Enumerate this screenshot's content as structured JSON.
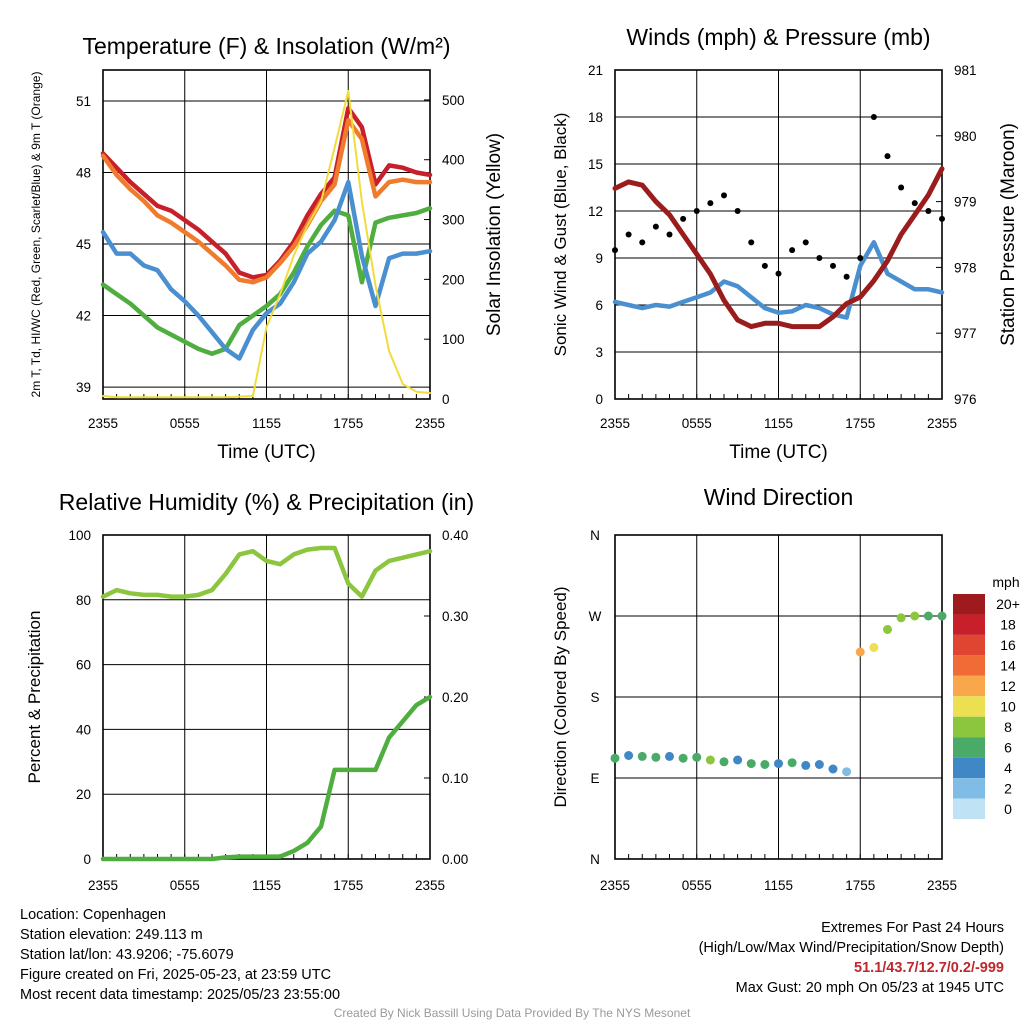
{
  "chart_data": [
    {
      "type": "line",
      "title": "Temperature (F) & Insolation (W/m²)",
      "xlabel": "Time (UTC)",
      "ylabel": "2m T, Td, HI/WC (Red, Green, Scarlet/Blue) & 9m T (Orange)",
      "ylabel2": "Solar Insolation (Yellow)",
      "xticks": [
        "2355",
        "0555",
        "1155",
        "1755",
        "2355"
      ],
      "yticks": [
        39,
        42,
        45,
        48,
        51
      ],
      "yticks2": [
        0,
        100,
        200,
        300,
        400,
        500
      ],
      "ylim": [
        38.5,
        52.3
      ],
      "ylim2": [
        0,
        550
      ],
      "xlim": [
        0,
        24
      ],
      "x": [
        0,
        1,
        2,
        3,
        4,
        5,
        6,
        7,
        8,
        9,
        10,
        11,
        12,
        13,
        14,
        15,
        16,
        17,
        18,
        19,
        20,
        21,
        22,
        23,
        24
      ],
      "series": [
        {
          "name": "2m T",
          "color": "#c8202a",
          "values": [
            48.8,
            48.2,
            47.6,
            47.1,
            46.6,
            46.4,
            46.0,
            45.6,
            45.1,
            44.6,
            43.8,
            43.6,
            43.7,
            44.3,
            45.1,
            46.2,
            47.1,
            47.8,
            50.7,
            49.9,
            47.5,
            48.3,
            48.2,
            48.0,
            47.9
          ]
        },
        {
          "name": "9m T",
          "color": "#f07b2c",
          "values": [
            48.7,
            47.9,
            47.3,
            46.8,
            46.2,
            45.9,
            45.5,
            45.1,
            44.6,
            44.1,
            43.5,
            43.4,
            43.6,
            44.2,
            44.9,
            45.8,
            46.8,
            47.5,
            50.2,
            49.4,
            47.0,
            47.6,
            47.7,
            47.6,
            47.6
          ]
        },
        {
          "name": "Td",
          "color": "#4fae3f",
          "values": [
            43.3,
            42.9,
            42.5,
            42.0,
            41.5,
            41.2,
            40.9,
            40.6,
            40.4,
            40.6,
            41.6,
            42.0,
            42.4,
            42.9,
            43.8,
            44.9,
            45.8,
            46.4,
            46.2,
            43.4,
            45.9,
            46.1,
            46.2,
            46.3,
            46.5
          ]
        },
        {
          "name": "HI/WC",
          "color": "#4a8fd0",
          "values": [
            45.5,
            44.6,
            44.6,
            44.1,
            43.9,
            43.1,
            42.6,
            42.0,
            41.3,
            40.6,
            40.2,
            41.4,
            42.1,
            42.5,
            43.4,
            44.6,
            45.1,
            46.0,
            47.6,
            44.5,
            42.4,
            44.4,
            44.6,
            44.6,
            44.7
          ]
        },
        {
          "name": "Solar Insolation",
          "axis": "right",
          "color": "#f2dc3c",
          "values": [
            5,
            3,
            3,
            3,
            3,
            3,
            3,
            3,
            3,
            3,
            4,
            5,
            120,
            175,
            240,
            290,
            330,
            420,
            515,
            330,
            190,
            80,
            25,
            12,
            10
          ]
        }
      ]
    },
    {
      "type": "line",
      "title": "Winds (mph) & Pressure (mb)",
      "xlabel": "Time (UTC)",
      "ylabel": "Sonic Wind & Gust (Blue, Black)",
      "ylabel2": "Station Pressure (Maroon)",
      "xticks": [
        "2355",
        "0555",
        "1155",
        "1755",
        "2355"
      ],
      "yticks": [
        0,
        3,
        6,
        9,
        12,
        15,
        18,
        21
      ],
      "yticks2": [
        976,
        977,
        978,
        979,
        980,
        981
      ],
      "ylim": [
        0,
        21
      ],
      "ylim2": [
        976,
        981
      ],
      "xlim": [
        0,
        24
      ],
      "x": [
        0,
        1,
        2,
        3,
        4,
        5,
        6,
        7,
        8,
        9,
        10,
        11,
        12,
        13,
        14,
        15,
        16,
        17,
        18,
        19,
        20,
        21,
        22,
        23,
        24
      ],
      "series": [
        {
          "name": "Sonic Wind",
          "color": "#4a8fd0",
          "values": [
            6.2,
            6.0,
            5.8,
            6.0,
            5.9,
            6.2,
            6.5,
            6.8,
            7.5,
            7.2,
            6.5,
            5.8,
            5.5,
            5.6,
            6.0,
            5.8,
            5.4,
            5.2,
            8.5,
            10.0,
            8.0,
            7.5,
            7.0,
            7.0,
            6.8
          ]
        },
        {
          "name": "Gust",
          "type": "scatter",
          "color": "#000000",
          "values": [
            9.5,
            10.5,
            10.0,
            11.0,
            10.5,
            11.5,
            12.0,
            12.5,
            13.0,
            12.0,
            10.0,
            8.5,
            8.0,
            9.5,
            10.0,
            9.0,
            8.5,
            7.8,
            9.0,
            18.0,
            15.5,
            13.5,
            12.5,
            12.0,
            11.5
          ]
        },
        {
          "name": "Station Pressure",
          "axis": "right",
          "color": "#9b1c1c",
          "values": [
            979.2,
            979.3,
            979.25,
            979.0,
            978.8,
            978.5,
            978.2,
            977.9,
            977.5,
            977.2,
            977.1,
            977.15,
            977.15,
            977.1,
            977.1,
            977.1,
            977.25,
            977.45,
            977.55,
            977.8,
            978.1,
            978.5,
            978.8,
            979.1,
            979.5
          ]
        }
      ]
    },
    {
      "type": "line",
      "title": "Relative Humidity (%) & Precipitation (in)",
      "xlabel": "",
      "ylabel": "Percent & Precipitation",
      "xticks": [
        "2355",
        "0555",
        "1155",
        "1755",
        "2355"
      ],
      "yticks": [
        0,
        20,
        40,
        60,
        80,
        100
      ],
      "yticks2": [
        "0.00",
        "0.10",
        "0.20",
        "0.30",
        "0.40"
      ],
      "ylim": [
        0,
        100
      ],
      "ylim2": [
        0,
        0.4
      ],
      "xlim": [
        0,
        24
      ],
      "x": [
        0,
        1,
        2,
        3,
        4,
        5,
        6,
        7,
        8,
        9,
        10,
        11,
        12,
        13,
        14,
        15,
        16,
        17,
        18,
        19,
        20,
        21,
        22,
        23,
        24
      ],
      "series": [
        {
          "name": "Relative Humidity",
          "color": "#8cc63f",
          "values": [
            81,
            83,
            82,
            81.5,
            81.5,
            81,
            81,
            81.5,
            83,
            88,
            94,
            95,
            92,
            91,
            94,
            95.5,
            96,
            96,
            85,
            81,
            89,
            92,
            93,
            94,
            95
          ]
        },
        {
          "name": "Precipitation",
          "axis": "right",
          "color": "#4fae3f",
          "values": [
            0,
            0,
            0,
            0,
            0,
            0,
            0,
            0,
            0,
            0.002,
            0.003,
            0.003,
            0.003,
            0.003,
            0.01,
            0.02,
            0.04,
            0.11,
            0.11,
            0.11,
            0.11,
            0.15,
            0.17,
            0.19,
            0.2
          ]
        }
      ]
    },
    {
      "type": "scatter",
      "title": "Wind Direction",
      "xlabel": "",
      "ylabel": "Direction (Colored By Speed)",
      "xticks": [
        "2355",
        "0555",
        "1155",
        "1755",
        "2355"
      ],
      "yticks": [
        "N",
        "E",
        "S",
        "W",
        "N"
      ],
      "ylim": [
        0,
        360
      ],
      "xlim": [
        0,
        24
      ],
      "x": [
        0,
        1,
        2,
        3,
        4,
        5,
        6,
        7,
        8,
        9,
        10,
        11,
        12,
        13,
        14,
        15,
        16,
        17,
        18,
        19,
        20,
        21,
        22,
        23,
        24
      ],
      "direction": [
        112,
        115,
        114,
        113,
        114,
        112,
        113,
        110,
        108,
        110,
        106,
        105,
        106,
        107,
        104,
        105,
        100,
        97,
        230,
        235,
        255,
        268,
        270,
        270,
        270
      ],
      "speed": [
        6,
        5,
        7,
        6,
        5,
        6,
        7,
        8,
        6,
        5,
        7,
        6,
        5,
        6,
        4,
        5,
        4,
        3,
        12,
        10,
        9,
        8,
        8,
        7,
        6
      ],
      "legend_title": "mph",
      "colorbar": [
        {
          "label": "20+",
          "color": "#9e1a1d"
        },
        {
          "label": "18",
          "color": "#c8202a"
        },
        {
          "label": "16",
          "color": "#e04532"
        },
        {
          "label": "14",
          "color": "#f06b35"
        },
        {
          "label": "12",
          "color": "#f8a74a"
        },
        {
          "label": "10",
          "color": "#eddf52"
        },
        {
          "label": "8",
          "color": "#8cc63f"
        },
        {
          "label": "6",
          "color": "#4aab69"
        },
        {
          "label": "4",
          "color": "#3f88c5"
        },
        {
          "label": "2",
          "color": "#80bde6"
        },
        {
          "label": "0",
          "color": "#bfe3f5"
        }
      ]
    }
  ],
  "info": {
    "location": "Location: Copenhagen",
    "elevation": "Station elevation: 249.113 m",
    "latlon": "Station lat/lon: 43.9206; -75.6079",
    "created": "Figure created on Fri, 2025-05-23, at 23:59 UTC",
    "recent": "Most recent data timestamp: 2025/05/23 23:55:00"
  },
  "extremes": {
    "title": "Extremes For Past 24 Hours",
    "subtitle": "(High/Low/Max Wind/Precipitation/Snow Depth)",
    "values": "51.1/43.7/12.7/0.2/-999",
    "gust": "Max Gust: 20 mph On 05/23 at 1945 UTC"
  },
  "credit": "Created By Nick Bassill Using Data Provided By The NYS Mesonet"
}
